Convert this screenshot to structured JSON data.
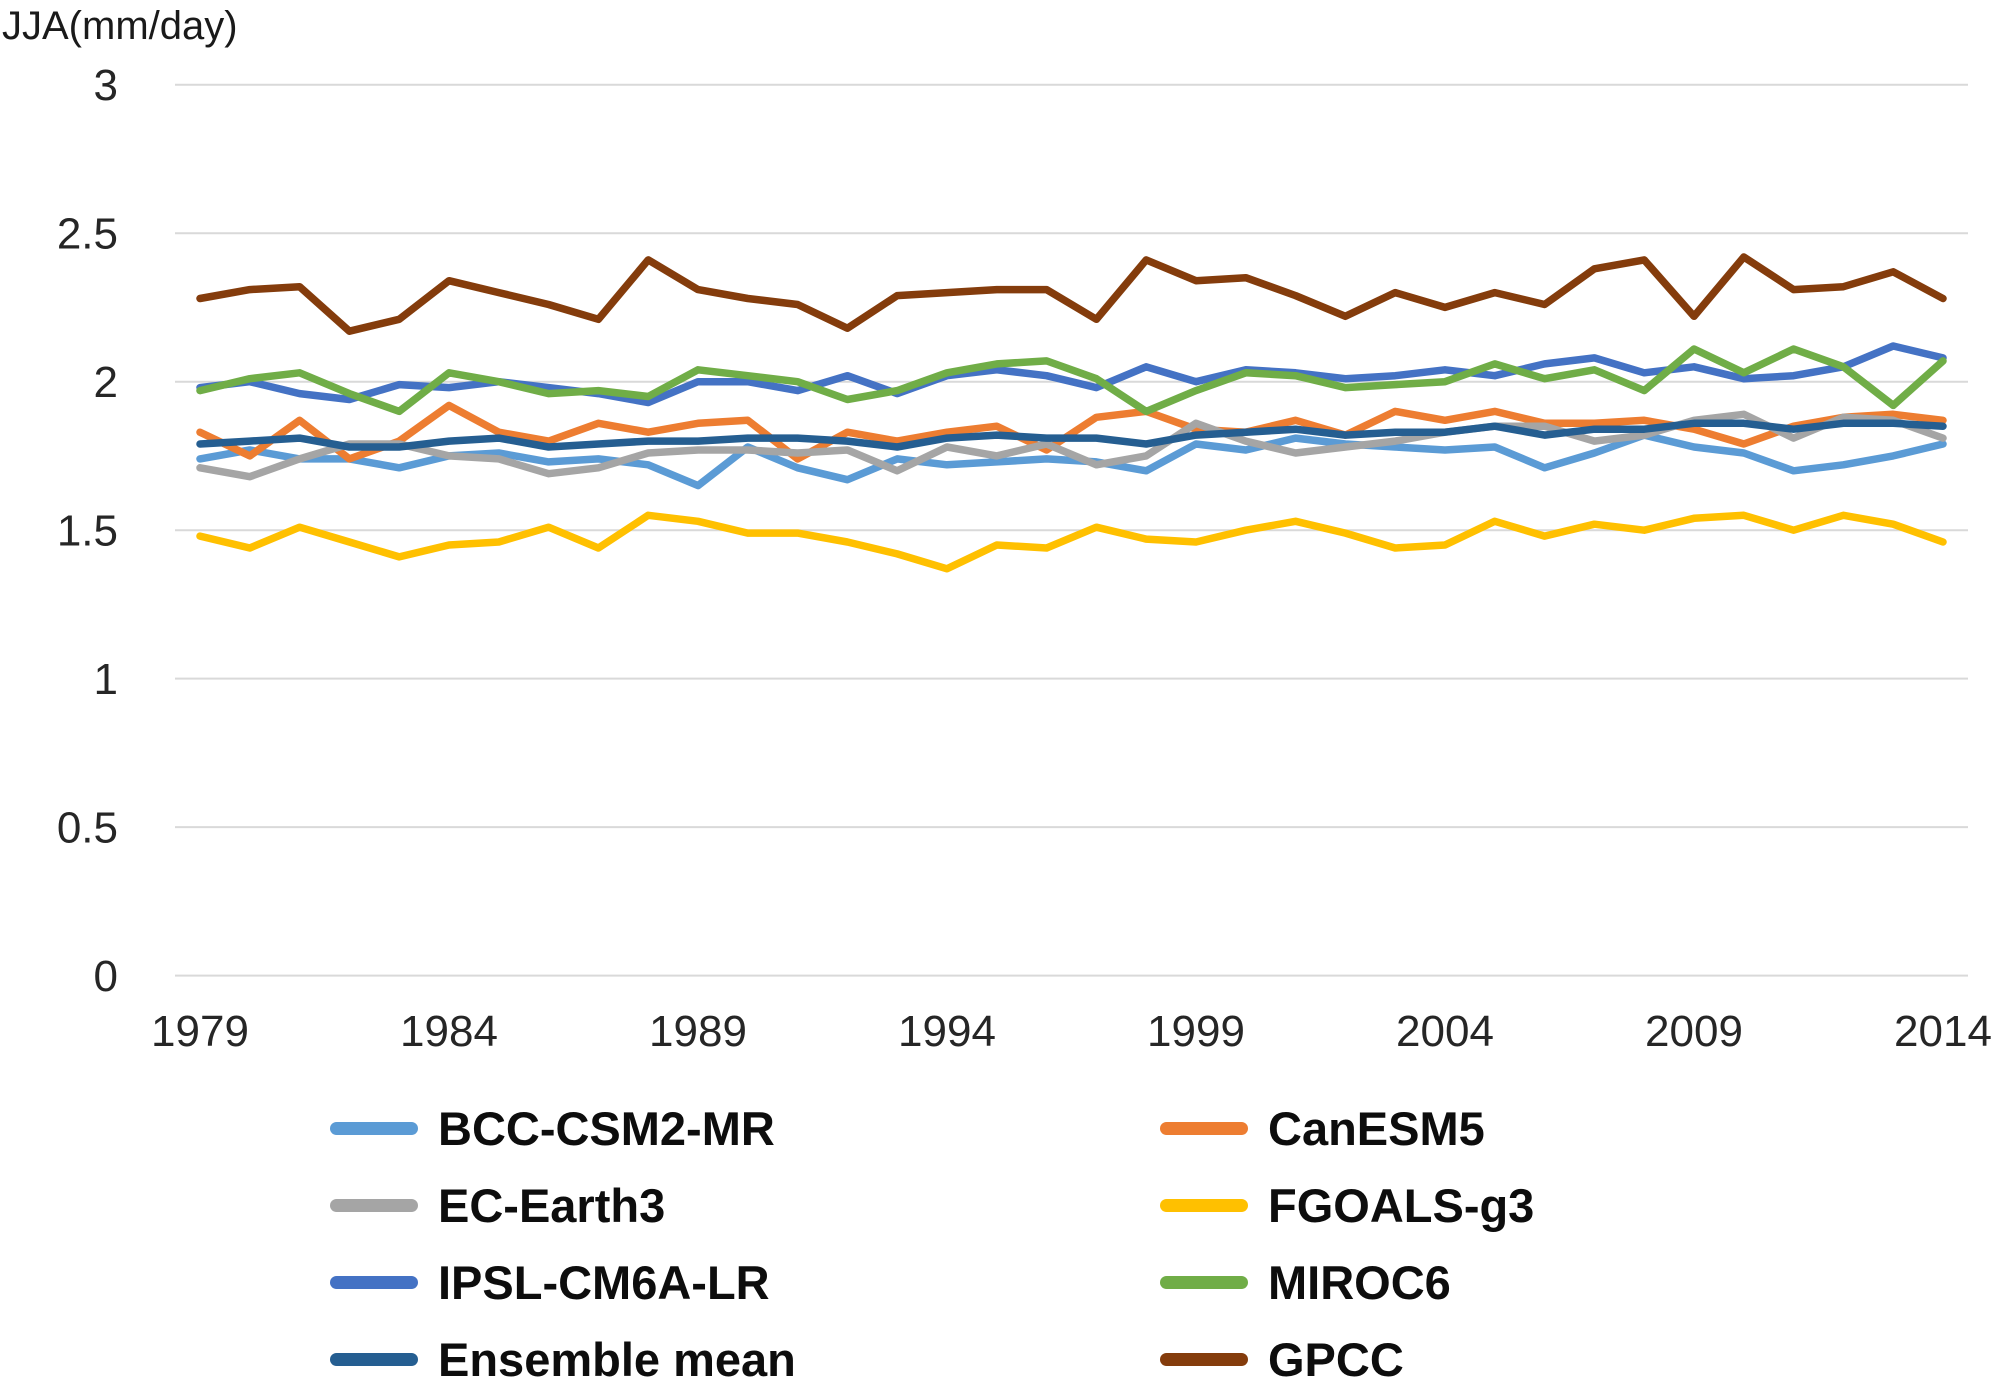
{
  "chart": {
    "title": "JJA(mm/day)",
    "grid_color": "#d9d9d9",
    "text_color": "#262626"
  },
  "chart_data": {
    "type": "line",
    "title": "JJA(mm/day)",
    "xlabel": "",
    "ylabel": "JJA(mm/day)",
    "ylim": [
      0,
      3
    ],
    "y_ticks": [
      3,
      2.5,
      2,
      1.5,
      1,
      0.5,
      0
    ],
    "x_ticks": [
      1979,
      1984,
      1989,
      1994,
      1999,
      2004,
      2009,
      2014
    ],
    "grid": "horizontal-only",
    "legend_position": "bottom-two-columns",
    "x": [
      1979,
      1980,
      1981,
      1982,
      1983,
      1984,
      1985,
      1986,
      1987,
      1988,
      1989,
      1990,
      1991,
      1992,
      1993,
      1994,
      1995,
      1996,
      1997,
      1998,
      1999,
      2000,
      2001,
      2002,
      2003,
      2004,
      2005,
      2006,
      2007,
      2008,
      2009,
      2010,
      2011,
      2012,
      2013,
      2014
    ],
    "series": [
      {
        "name": "BCC-CSM2-MR",
        "color": "#5B9BD5",
        "values": [
          1.74,
          1.77,
          1.74,
          1.74,
          1.71,
          1.75,
          1.76,
          1.73,
          1.74,
          1.72,
          1.65,
          1.78,
          1.71,
          1.67,
          1.74,
          1.72,
          1.73,
          1.74,
          1.73,
          1.7,
          1.79,
          1.77,
          1.81,
          1.79,
          1.78,
          1.77,
          1.78,
          1.71,
          1.76,
          1.82,
          1.78,
          1.76,
          1.7,
          1.72,
          1.75,
          1.79
        ]
      },
      {
        "name": "CanESM5",
        "color": "#ED7D31",
        "values": [
          1.83,
          1.75,
          1.87,
          1.74,
          1.8,
          1.92,
          1.83,
          1.8,
          1.86,
          1.83,
          1.86,
          1.87,
          1.74,
          1.83,
          1.8,
          1.83,
          1.85,
          1.77,
          1.88,
          1.9,
          1.84,
          1.83,
          1.87,
          1.82,
          1.9,
          1.87,
          1.9,
          1.86,
          1.86,
          1.87,
          1.84,
          1.79,
          1.85,
          1.88,
          1.89,
          1.87
        ]
      },
      {
        "name": "EC-Earth3",
        "color": "#A5A5A5",
        "values": [
          1.71,
          1.68,
          1.74,
          1.79,
          1.79,
          1.75,
          1.74,
          1.69,
          1.71,
          1.76,
          1.77,
          1.77,
          1.76,
          1.77,
          1.7,
          1.78,
          1.75,
          1.79,
          1.72,
          1.75,
          1.86,
          1.8,
          1.76,
          1.78,
          1.8,
          1.83,
          1.85,
          1.85,
          1.8,
          1.82,
          1.87,
          1.89,
          1.81,
          1.88,
          1.87,
          1.81
        ]
      },
      {
        "name": "FGOALS-g3",
        "color": "#FFC000",
        "values": [
          1.48,
          1.44,
          1.51,
          1.46,
          1.41,
          1.45,
          1.46,
          1.51,
          1.44,
          1.55,
          1.53,
          1.49,
          1.49,
          1.46,
          1.42,
          1.37,
          1.45,
          1.44,
          1.51,
          1.47,
          1.46,
          1.5,
          1.53,
          1.49,
          1.44,
          1.45,
          1.53,
          1.48,
          1.52,
          1.5,
          1.54,
          1.55,
          1.5,
          1.55,
          1.52,
          1.46
        ]
      },
      {
        "name": "IPSL-CM6A-LR",
        "color": "#4472C4",
        "values": [
          1.98,
          2.0,
          1.96,
          1.94,
          1.99,
          1.98,
          2.0,
          1.98,
          1.96,
          1.93,
          2.0,
          2.0,
          1.97,
          2.02,
          1.96,
          2.02,
          2.04,
          2.02,
          1.98,
          2.05,
          2.0,
          2.04,
          2.03,
          2.01,
          2.02,
          2.04,
          2.02,
          2.06,
          2.08,
          2.03,
          2.05,
          2.01,
          2.02,
          2.05,
          2.12,
          2.08
        ]
      },
      {
        "name": "MIROC6",
        "color": "#70AD47",
        "values": [
          1.97,
          2.01,
          2.03,
          1.96,
          1.9,
          2.03,
          2.0,
          1.96,
          1.97,
          1.95,
          2.04,
          2.02,
          2.0,
          1.94,
          1.97,
          2.03,
          2.06,
          2.07,
          2.01,
          1.9,
          1.97,
          2.03,
          2.02,
          1.98,
          1.99,
          2.0,
          2.06,
          2.01,
          2.04,
          1.97,
          2.11,
          2.03,
          2.11,
          2.05,
          1.92,
          2.07
        ]
      },
      {
        "name": "Ensemble mean",
        "color": "#255E91",
        "values": [
          1.79,
          1.8,
          1.81,
          1.78,
          1.78,
          1.8,
          1.81,
          1.78,
          1.79,
          1.8,
          1.8,
          1.81,
          1.81,
          1.8,
          1.78,
          1.81,
          1.82,
          1.81,
          1.81,
          1.79,
          1.82,
          1.83,
          1.84,
          1.82,
          1.83,
          1.83,
          1.85,
          1.82,
          1.84,
          1.84,
          1.86,
          1.86,
          1.84,
          1.86,
          1.86,
          1.85
        ]
      },
      {
        "name": "GPCC",
        "color": "#843C0C",
        "values": [
          2.28,
          2.31,
          2.32,
          2.17,
          2.21,
          2.34,
          2.3,
          2.26,
          2.21,
          2.41,
          2.31,
          2.28,
          2.26,
          2.18,
          2.29,
          2.3,
          2.31,
          2.31,
          2.21,
          2.41,
          2.34,
          2.35,
          2.29,
          2.22,
          2.3,
          2.25,
          2.3,
          2.26,
          2.38,
          2.41,
          2.22,
          2.42,
          2.31,
          2.32,
          2.37,
          2.28
        ]
      }
    ]
  },
  "legend": {
    "items": [
      {
        "label": "BCC-CSM2-MR",
        "color": "#5B9BD5"
      },
      {
        "label": "CanESM5",
        "color": "#ED7D31"
      },
      {
        "label": "EC-Earth3",
        "color": "#A5A5A5"
      },
      {
        "label": "FGOALS-g3",
        "color": "#FFC000"
      },
      {
        "label": "IPSL-CM6A-LR",
        "color": "#4472C4"
      },
      {
        "label": "MIROC6",
        "color": "#70AD47"
      },
      {
        "label": "Ensemble mean",
        "color": "#255E91"
      },
      {
        "label": "GPCC",
        "color": "#843C0C"
      }
    ]
  }
}
